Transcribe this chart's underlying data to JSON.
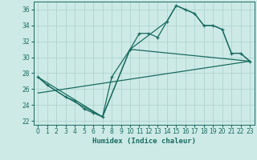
{
  "xlabel": "Humidex (Indice chaleur)",
  "background_color": "#cdeae7",
  "grid_color": "#b0d4d0",
  "line_color": "#1a6b60",
  "xlim": [
    -0.5,
    23.5
  ],
  "ylim": [
    21.5,
    37.0
  ],
  "xticks": [
    0,
    1,
    2,
    3,
    4,
    5,
    6,
    7,
    8,
    9,
    10,
    11,
    12,
    13,
    14,
    15,
    16,
    17,
    18,
    19,
    20,
    21,
    22,
    23
  ],
  "yticks": [
    22,
    24,
    26,
    28,
    30,
    32,
    34,
    36
  ],
  "series1_x": [
    0,
    1,
    3,
    4,
    5,
    6,
    7,
    8,
    10,
    11,
    12,
    13,
    14,
    15,
    16,
    17,
    18,
    19,
    20,
    21,
    22,
    23
  ],
  "series1_y": [
    27.5,
    26.5,
    25.0,
    24.5,
    23.5,
    23.0,
    22.5,
    27.5,
    31.0,
    33.0,
    33.0,
    32.5,
    34.5,
    36.5,
    36.0,
    35.5,
    34.0,
    34.0,
    33.5,
    30.5,
    30.5,
    29.5
  ],
  "series2_x": [
    0,
    1,
    3,
    7,
    10,
    14,
    15,
    16,
    17,
    18,
    19,
    20,
    21,
    22,
    23
  ],
  "series2_y": [
    27.5,
    26.5,
    25.0,
    22.5,
    31.0,
    34.5,
    36.5,
    36.0,
    35.5,
    34.0,
    34.0,
    33.5,
    30.5,
    30.5,
    29.5
  ],
  "series3_x": [
    0,
    23
  ],
  "series3_y": [
    25.5,
    29.5
  ],
  "series4_x": [
    0,
    7,
    10,
    23
  ],
  "series4_y": [
    27.5,
    22.5,
    31.0,
    29.5
  ]
}
